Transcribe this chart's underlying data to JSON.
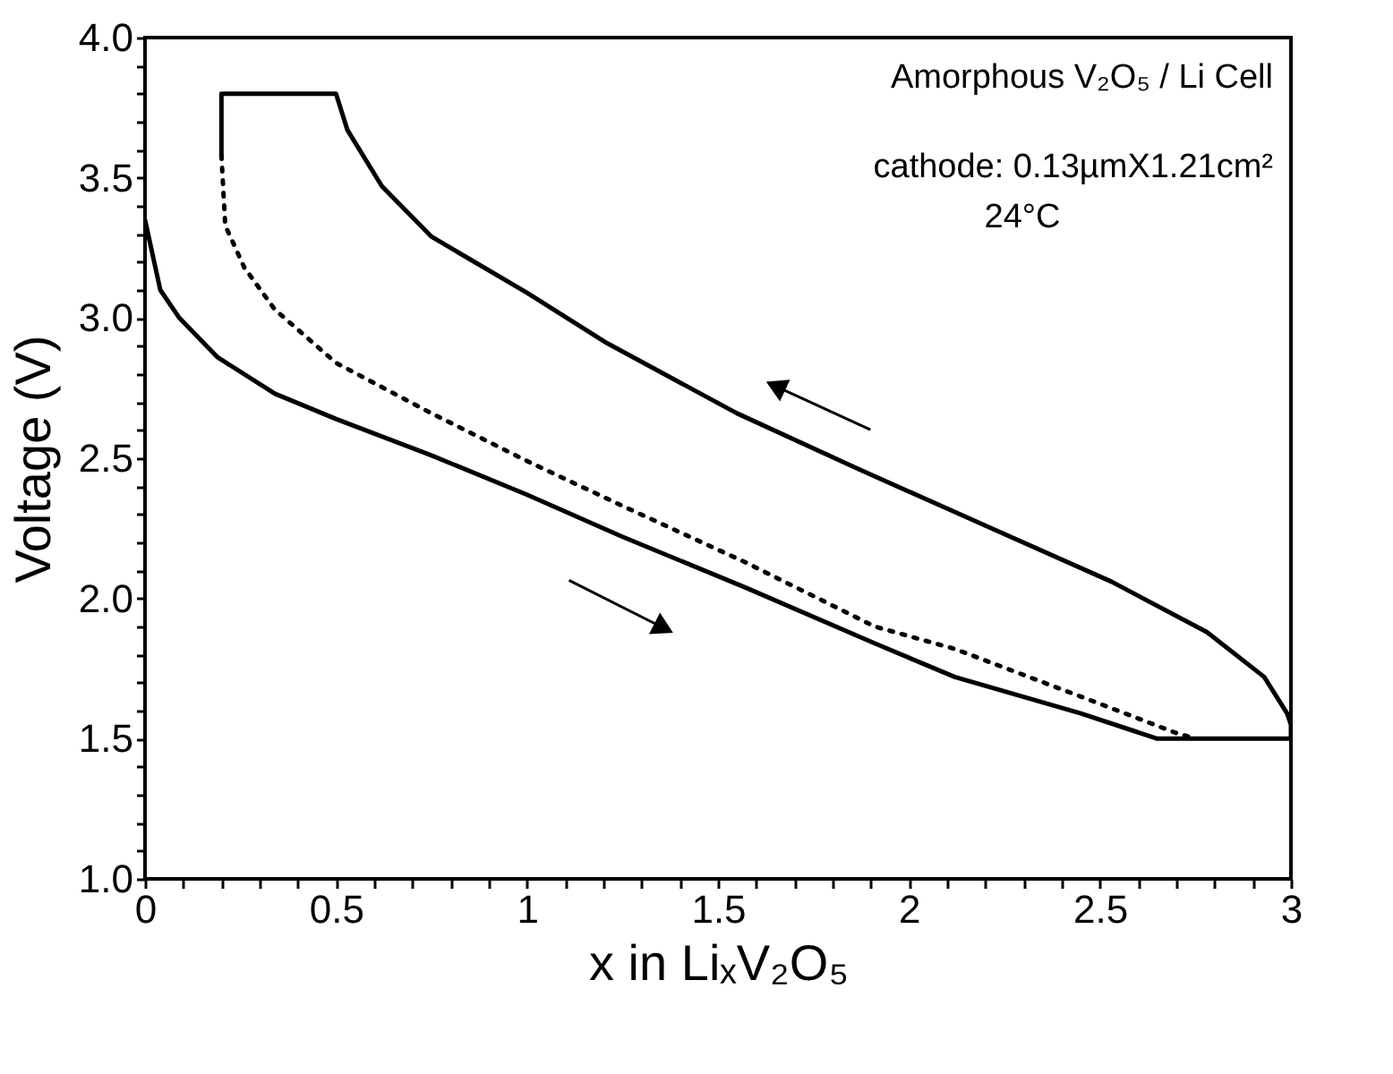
{
  "chart_data": {
    "type": "line",
    "xlabel": "x in LiₓV₂O₅",
    "ylabel": "Voltage (V)",
    "annotations": [
      "Amorphous V₂O₅ / Li Cell",
      "cathode: 0.13µmX1.21cm²",
      "24°C"
    ],
    "series": [
      {
        "color": "#000000",
        "line_style": "solid",
        "x": [
          0,
          0.04,
          0.09,
          0.19,
          0.34,
          0.5,
          0.75,
          1.0,
          1.25,
          1.57,
          1.91,
          2.12,
          2.45,
          2.65,
          3.0,
          3.0,
          2.99,
          2.93,
          2.78,
          2.53,
          2.2,
          1.87,
          1.55,
          1.21,
          1.0,
          0.75,
          0.62,
          0.53,
          0.5,
          0.2,
          0.2
        ],
        "values": [
          3.35,
          3.1,
          3.0,
          2.86,
          2.73,
          2.64,
          2.51,
          2.37,
          2.22,
          2.04,
          1.84,
          1.72,
          1.59,
          1.5,
          1.5,
          1.55,
          1.59,
          1.72,
          1.88,
          2.06,
          2.26,
          2.46,
          2.66,
          2.91,
          3.09,
          3.29,
          3.47,
          3.67,
          3.8,
          3.8,
          3.58
        ]
      },
      {
        "color": "#000000",
        "line_style": "dotted",
        "x": [
          0.2,
          0.21,
          0.26,
          0.34,
          0.5,
          0.75,
          1.0,
          1.25,
          1.57,
          1.91,
          2.12,
          2.45,
          2.7,
          2.75
        ],
        "values": [
          3.58,
          3.33,
          3.18,
          3.03,
          2.84,
          2.66,
          2.49,
          2.33,
          2.13,
          1.9,
          1.82,
          1.65,
          1.52,
          1.5
        ]
      }
    ],
    "xlim": [
      0,
      3.0
    ],
    "xticks": [
      0,
      {
        "value": 0.1,
        "label": null
      },
      {
        "value": 0.2,
        "label": null
      },
      {
        "value": 0.3,
        "label": null
      },
      {
        "value": 0.4,
        "label": null
      },
      0.5,
      {
        "value": 0.6,
        "label": null
      },
      {
        "value": 0.7,
        "label": null
      },
      {
        "value": 0.8,
        "label": null
      },
      {
        "value": 0.9,
        "label": null
      },
      1,
      {
        "value": 1.1,
        "label": null
      },
      {
        "value": 1.2,
        "label": null
      },
      {
        "value": 1.3,
        "label": null
      },
      {
        "value": 1.4,
        "label": null
      },
      1.5,
      {
        "value": 1.6,
        "label": null
      },
      {
        "value": 1.7,
        "label": null
      },
      {
        "value": 1.8,
        "label": null
      },
      {
        "value": 1.9,
        "label": null
      },
      2,
      {
        "value": 2.1,
        "label": null
      },
      {
        "value": 2.2,
        "label": null
      },
      {
        "value": 2.3,
        "label": null
      },
      {
        "value": 2.4,
        "label": null
      },
      2.5,
      {
        "value": 2.6,
        "label": null
      },
      {
        "value": 2.7,
        "label": null
      },
      {
        "value": 2.8,
        "label": null
      },
      {
        "value": 2.9,
        "label": null
      },
      3
    ],
    "ylim": [
      1.0,
      4.0
    ],
    "yticks": [
      {
        "value": 1.0,
        "label": "1.0"
      },
      {
        "value": 1.1,
        "label": null
      },
      {
        "value": 1.2,
        "label": null
      },
      {
        "value": 1.3,
        "label": null
      },
      {
        "value": 1.4,
        "label": null
      },
      1.5,
      {
        "value": 1.6,
        "label": null
      },
      {
        "value": 1.7,
        "label": null
      },
      {
        "value": 1.8,
        "label": null
      },
      {
        "value": 1.9,
        "label": null
      },
      {
        "value": 2.0,
        "label": "2.0"
      },
      {
        "value": 2.1,
        "label": null
      },
      {
        "value": 2.2,
        "label": null
      },
      {
        "value": 2.3,
        "label": null
      },
      {
        "value": 2.4,
        "label": null
      },
      2.5,
      {
        "value": 2.6,
        "label": null
      },
      {
        "value": 2.7,
        "label": null
      },
      {
        "value": 2.8,
        "label": null
      },
      {
        "value": 2.9,
        "label": null
      },
      {
        "value": 3.0,
        "label": "3.0"
      },
      {
        "value": 3.1,
        "label": null
      },
      {
        "value": 3.2,
        "label": null
      },
      {
        "value": 3.3,
        "label": null
      },
      {
        "value": 3.4,
        "label": null
      },
      3.5,
      {
        "value": 3.6,
        "label": null
      },
      {
        "value": 3.7,
        "label": null
      },
      {
        "value": 3.8,
        "label": null
      },
      {
        "value": 3.9,
        "label": null
      },
      {
        "value": 4.0,
        "label": "4.0"
      }
    ],
    "grid": false,
    "marker": "none"
  }
}
